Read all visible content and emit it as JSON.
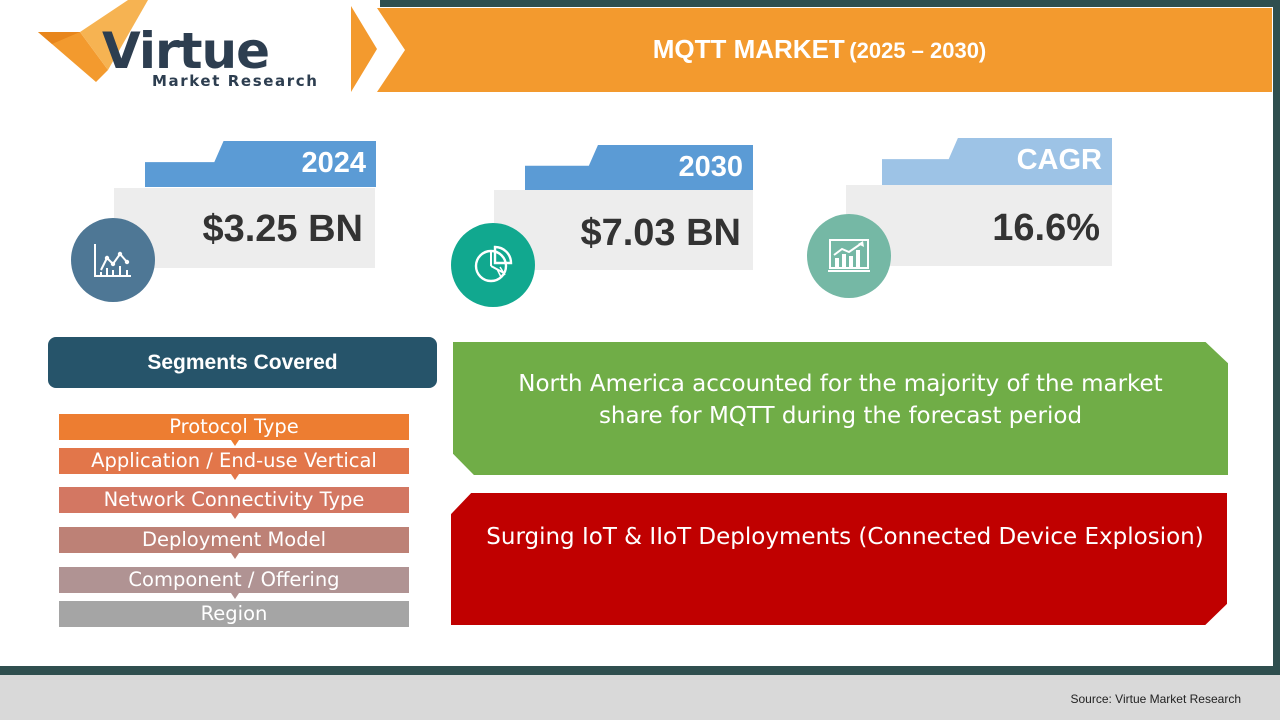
{
  "logo": {
    "brand": "Virtue",
    "tagline": "Market Research",
    "colors": {
      "v": "#f39a2e",
      "text": "#2d3e50"
    }
  },
  "header": {
    "title": "MQTT MARKET",
    "years": "(2025 – 2030)",
    "color": "#f39a2e"
  },
  "stats": [
    {
      "label": "2024",
      "value": "$3.25 BN",
      "icon": "line-chart-icon",
      "tab_color": "#5b9bd5",
      "circle_color": "#4e7795"
    },
    {
      "label": "2030",
      "value": "$7.03 BN",
      "icon": "pie-chart-icon",
      "tab_color": "#5b9bd5",
      "circle_color": "#11a88f"
    },
    {
      "label": "CAGR",
      "value": "16.6%",
      "icon": "growth-chart-icon",
      "tab_color": "#9dc3e6",
      "circle_color": "#75b8a5"
    }
  ],
  "segments": {
    "title": "Segments Covered",
    "items": [
      {
        "label": "Protocol Type",
        "color": "#ed7d31"
      },
      {
        "label": "Application / End-use Vertical",
        "color": "#e2764a"
      },
      {
        "label": "Network Connectivity Type",
        "color": "#d37762"
      },
      {
        "label": "Deployment Model",
        "color": "#bd8176"
      },
      {
        "label": "Component / Offering",
        "color": "#b09393"
      },
      {
        "label": "Region",
        "color": "#a5a5a5"
      }
    ]
  },
  "insights": {
    "region": "North America accounted for the majority of the market share for MQTT during the forecast period",
    "driver": "Surging IoT & IIoT Deployments (Connected Device Explosion)"
  },
  "footer": {
    "source": "Source: Virtue Market Research"
  }
}
